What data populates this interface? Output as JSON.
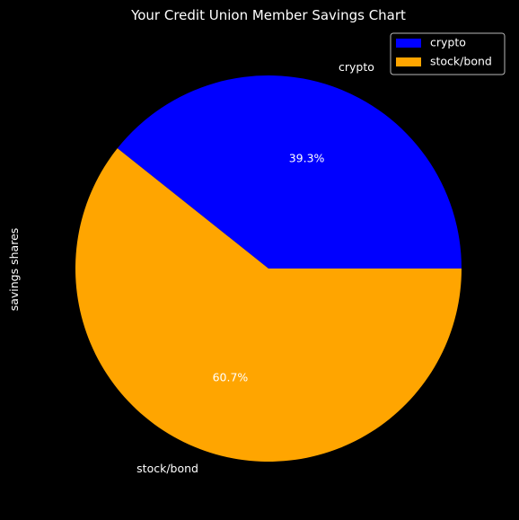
{
  "chart_data": {
    "type": "pie",
    "title": "Your Credit Union Member Savings Chart",
    "ylabel": "savings shares",
    "categories": [
      "crypto",
      "stock/bond"
    ],
    "values": [
      39.3,
      60.7
    ],
    "percent_labels": [
      "39.3%",
      "60.7%"
    ],
    "colors": [
      "#0000ff",
      "#ffa500"
    ],
    "legend": {
      "placement": "top-right",
      "entries": [
        "crypto",
        "stock/bond"
      ]
    },
    "start_angle_deg": 0,
    "direction": "counterclockwise"
  }
}
